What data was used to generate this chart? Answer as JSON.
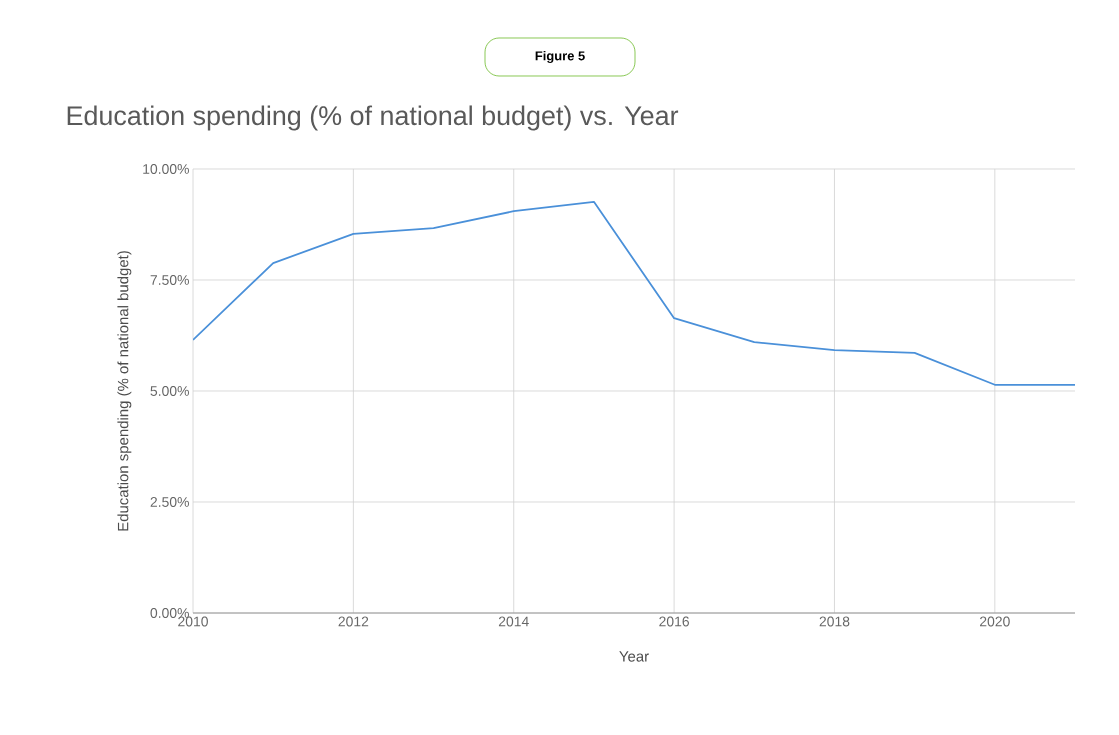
{
  "chart_data": {
    "type": "line",
    "title": "Education spending (% of national budget) vs. Year",
    "xlabel": "Year",
    "ylabel": "Education spending (% of national budget)",
    "annotations": [
      "Figure 5"
    ],
    "x": [
      2010,
      2011,
      2012,
      2013,
      2014,
      2015,
      2016,
      2017,
      2018,
      2019,
      2020,
      2021
    ],
    "series": [
      {
        "color": "#4a90d9",
        "values": [
          6.15,
          7.88,
          8.54,
          8.67,
          9.05,
          9.26,
          6.64,
          6.1,
          5.92,
          5.86,
          5.14,
          5.14
        ]
      }
    ],
    "xlim": [
      2010,
      2021
    ],
    "ylim": [
      0,
      10
    ],
    "xticks": [
      2010,
      2012,
      2014,
      2016,
      2018,
      2020
    ],
    "yticks": [
      {
        "value": 0,
        "label": "0.00%"
      },
      {
        "value": 2.5,
        "label": "2.50%"
      },
      {
        "value": 5,
        "label": "5.00%"
      },
      {
        "value": 7.5,
        "label": "7.50%"
      },
      {
        "value": 10,
        "label": "10.00%"
      }
    ],
    "grid": true,
    "marker": "none",
    "line_style": "solid"
  }
}
